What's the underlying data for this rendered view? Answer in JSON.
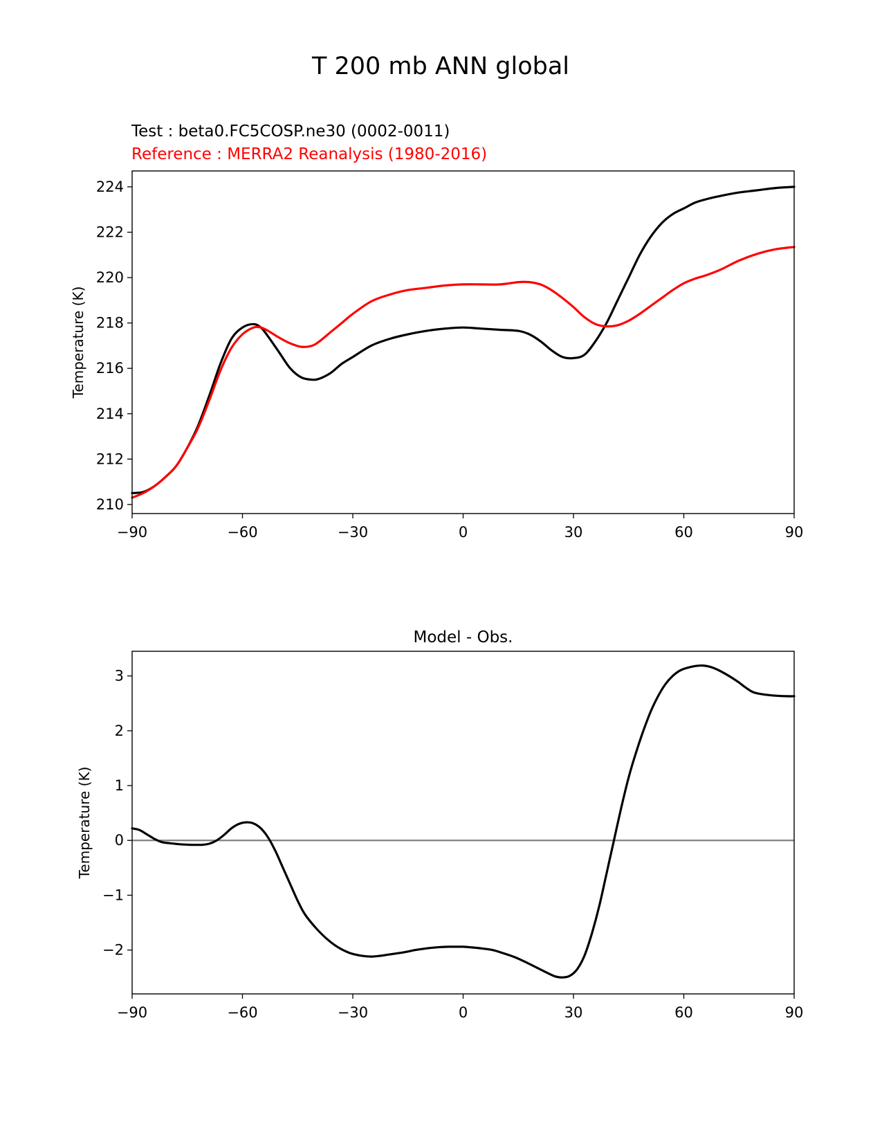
{
  "figure": {
    "title": "T 200 mb ANN global",
    "test_label": "Test : beta0.FC5COSP.ne30 (0002-0011)",
    "reference_label": "Reference : MERRA2 Reanalysis (1980-2016)",
    "colors": {
      "test": "#000000",
      "reference": "#ff0000",
      "zero_line": "#808080",
      "axes": "#000000"
    }
  },
  "chart_data": [
    {
      "type": "line",
      "title": "",
      "xlabel": "",
      "ylabel": "Temperature (K)",
      "xlim": [
        -90,
        90
      ],
      "ylim": [
        209.6,
        224.7
      ],
      "xticks": [
        -90,
        -60,
        -30,
        0,
        30,
        60,
        90
      ],
      "xtick_labels": [
        "−90",
        "−60",
        "−30",
        "0",
        "30",
        "60",
        "90"
      ],
      "yticks": [
        210,
        212,
        214,
        216,
        218,
        220,
        222,
        224
      ],
      "ytick_labels": [
        "210",
        "212",
        "214",
        "216",
        "218",
        "220",
        "222",
        "224"
      ],
      "grid": false,
      "series": [
        {
          "name": "Test : beta0.FC5COSP.ne30 (0002-0011)",
          "color": "#000000",
          "x": [
            -90,
            -87,
            -84,
            -81,
            -78,
            -75,
            -72,
            -69,
            -66,
            -63,
            -60,
            -57,
            -55,
            -53,
            -50,
            -47,
            -44,
            -41,
            -39,
            -36,
            -33,
            -30,
            -25,
            -20,
            -15,
            -10,
            -5,
            0,
            5,
            10,
            15,
            18,
            21,
            24,
            27,
            30,
            33,
            36,
            39,
            42,
            45,
            48,
            51,
            54,
            57,
            60,
            63,
            66,
            70,
            75,
            80,
            85,
            90
          ],
          "y": [
            210.5,
            210.55,
            210.8,
            211.2,
            211.7,
            212.5,
            213.5,
            214.8,
            216.2,
            217.3,
            217.8,
            217.95,
            217.8,
            217.4,
            216.7,
            216.0,
            215.6,
            215.5,
            215.55,
            215.8,
            216.2,
            216.5,
            217.0,
            217.3,
            217.5,
            217.65,
            217.75,
            217.8,
            217.75,
            217.7,
            217.65,
            217.5,
            217.2,
            216.8,
            216.5,
            216.45,
            216.6,
            217.2,
            218.0,
            219.0,
            220.0,
            221.0,
            221.8,
            222.4,
            222.8,
            223.05,
            223.3,
            223.45,
            223.6,
            223.75,
            223.85,
            223.95,
            224.0
          ]
        },
        {
          "name": "Reference : MERRA2 Reanalysis (1980-2016)",
          "color": "#ff0000",
          "x": [
            -90,
            -87,
            -84,
            -81,
            -78,
            -75,
            -72,
            -69,
            -66,
            -63,
            -60,
            -57,
            -55,
            -53,
            -50,
            -47,
            -44,
            -41,
            -39,
            -36,
            -33,
            -30,
            -25,
            -20,
            -15,
            -10,
            -5,
            0,
            5,
            10,
            15,
            18,
            21,
            24,
            27,
            30,
            33,
            36,
            39,
            42,
            45,
            48,
            51,
            54,
            57,
            60,
            63,
            66,
            70,
            75,
            80,
            85,
            90
          ],
          "y": [
            210.3,
            210.5,
            210.8,
            211.2,
            211.7,
            212.5,
            213.4,
            214.6,
            215.9,
            216.9,
            217.5,
            217.8,
            217.8,
            217.65,
            217.35,
            217.1,
            216.95,
            217.0,
            217.2,
            217.6,
            218.0,
            218.4,
            218.95,
            219.25,
            219.45,
            219.55,
            219.65,
            219.7,
            219.7,
            219.7,
            219.8,
            219.8,
            219.7,
            219.45,
            219.1,
            218.7,
            218.25,
            217.95,
            217.85,
            217.9,
            218.1,
            218.4,
            218.75,
            219.1,
            219.45,
            219.75,
            219.95,
            220.1,
            220.35,
            220.75,
            221.05,
            221.25,
            221.35
          ]
        }
      ]
    },
    {
      "type": "line",
      "title": "Model - Obs.",
      "xlabel": "",
      "ylabel": "Temperature (K)",
      "xlim": [
        -90,
        90
      ],
      "ylim": [
        -2.8,
        3.45
      ],
      "xticks": [
        -90,
        -60,
        -30,
        0,
        30,
        60,
        90
      ],
      "xtick_labels": [
        "−90",
        "−60",
        "−30",
        "0",
        "30",
        "60",
        "90"
      ],
      "yticks": [
        -2,
        -1,
        0,
        1,
        2,
        3
      ],
      "ytick_labels": [
        "−2",
        "−1",
        "0",
        "1",
        "2",
        "3"
      ],
      "grid": false,
      "zero_line": 0,
      "series": [
        {
          "name": "Model - Obs.",
          "color": "#000000",
          "x": [
            -90,
            -88,
            -86,
            -84,
            -82,
            -80,
            -77,
            -74,
            -71,
            -69,
            -67,
            -65,
            -63,
            -61,
            -59,
            -57,
            -55,
            -53,
            -51,
            -49,
            -47,
            -45,
            -43,
            -40,
            -37,
            -34,
            -31,
            -28,
            -25,
            -22,
            -19,
            -16,
            -13,
            -10,
            -7,
            -4,
            -1,
            0,
            2,
            5,
            8,
            11,
            14,
            17,
            20,
            23,
            25,
            27,
            29,
            31,
            33,
            35,
            37,
            39,
            41,
            43,
            45,
            47,
            49,
            51,
            53,
            55,
            57,
            59,
            61,
            63,
            65,
            67,
            69,
            71,
            73,
            75,
            77,
            79,
            82,
            85,
            88,
            90
          ],
          "y": [
            0.22,
            0.19,
            0.11,
            0.03,
            -0.03,
            -0.05,
            -0.07,
            -0.08,
            -0.08,
            -0.06,
            0.0,
            0.1,
            0.22,
            0.3,
            0.33,
            0.31,
            0.22,
            0.05,
            -0.2,
            -0.5,
            -0.8,
            -1.1,
            -1.35,
            -1.6,
            -1.8,
            -1.95,
            -2.05,
            -2.1,
            -2.12,
            -2.1,
            -2.07,
            -2.04,
            -2.0,
            -1.97,
            -1.95,
            -1.94,
            -1.94,
            -1.94,
            -1.95,
            -1.97,
            -2.0,
            -2.06,
            -2.13,
            -2.22,
            -2.32,
            -2.42,
            -2.48,
            -2.5,
            -2.47,
            -2.35,
            -2.1,
            -1.7,
            -1.2,
            -0.6,
            0.0,
            0.6,
            1.15,
            1.6,
            2.0,
            2.35,
            2.63,
            2.85,
            3.0,
            3.1,
            3.15,
            3.18,
            3.19,
            3.17,
            3.12,
            3.05,
            2.97,
            2.88,
            2.78,
            2.7,
            2.66,
            2.64,
            2.63,
            2.63
          ]
        }
      ]
    }
  ]
}
